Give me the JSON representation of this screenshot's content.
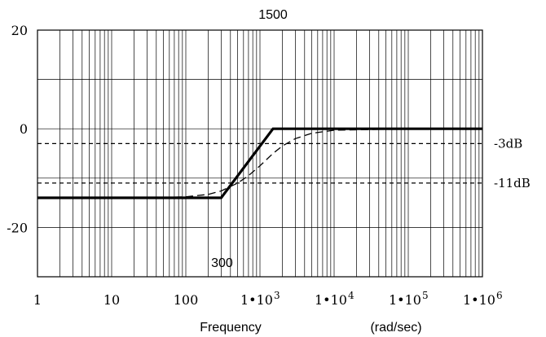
{
  "chart_data": {
    "type": "line",
    "x_scale": "log",
    "xlim": [
      1,
      1000000
    ],
    "ylim": [
      -30,
      20
    ],
    "grid": true,
    "xlabel": "Frequency",
    "xunit": "(rad/sec)",
    "x_ticks": [
      {
        "value": 1,
        "base": "1",
        "exp": ""
      },
      {
        "value": 10,
        "base": "10",
        "exp": ""
      },
      {
        "value": 100,
        "base": "100",
        "exp": ""
      },
      {
        "value": 1000,
        "base": "1•10",
        "exp": "3"
      },
      {
        "value": 10000,
        "base": "1•10",
        "exp": "4"
      },
      {
        "value": 100000,
        "base": "1•10",
        "exp": "5"
      },
      {
        "value": 1000000,
        "base": "1•10",
        "exp": "6"
      }
    ],
    "y_ticks": [
      {
        "value": 20,
        "label": "20"
      },
      {
        "value": 0,
        "label": "0"
      },
      {
        "value": -20,
        "label": "-20"
      }
    ],
    "series": [
      {
        "style": "solid-thick",
        "x": [
          1,
          300,
          1500,
          1000000
        ],
        "y": [
          -14,
          -14,
          0,
          0
        ]
      },
      {
        "style": "dashed",
        "x": [
          1,
          30,
          100,
          200,
          300,
          500,
          700,
          1000,
          1500,
          2000,
          3000,
          5000,
          10000,
          100000,
          1000000
        ],
        "y": [
          -14,
          -14,
          -13.8,
          -13.3,
          -12.6,
          -11,
          -9.5,
          -7.5,
          -5,
          -3.5,
          -2,
          -0.9,
          -0.3,
          0,
          0
        ]
      }
    ],
    "reference_lines": [
      {
        "y": -3,
        "label": "-3dB"
      },
      {
        "y": -11,
        "label": "-11dB"
      }
    ],
    "annotations": [
      {
        "text": "1500",
        "x": 1500,
        "position": "top"
      },
      {
        "text": "300",
        "x": 300,
        "position": "bottom"
      }
    ]
  }
}
